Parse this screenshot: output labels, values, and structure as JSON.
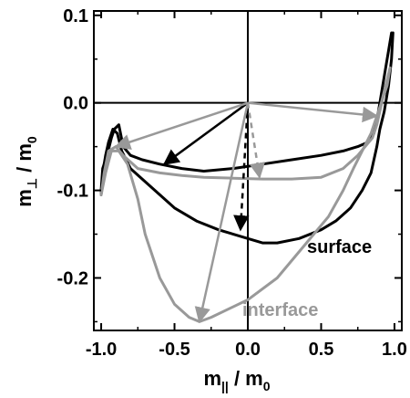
{
  "chart_data": {
    "type": "line",
    "xlabel": {
      "main": "m",
      "sub": "||",
      "den": " / m",
      "den_sub": "0"
    },
    "ylabel": {
      "main": "m",
      "sub": "⊥",
      "den": " / m",
      "den_sub": "0"
    },
    "xlim": [
      -1.05,
      1.05
    ],
    "ylim": [
      -0.26,
      0.105
    ],
    "xticks": [
      -1.0,
      -0.5,
      0.0,
      0.5,
      1.0
    ],
    "xtick_labels": [
      "-1.0",
      "-0.5",
      "0.0",
      "0.5",
      "1.0"
    ],
    "yticks": [
      -0.2,
      -0.1,
      0.0,
      0.1
    ],
    "ytick_labels": [
      "-0.2",
      "-0.1",
      "0.0",
      "0.1"
    ],
    "zero_lines": true,
    "series": [
      {
        "name": "surface",
        "color": "#000000",
        "segments": [
          [
            [
              -1.0,
              -0.1
            ],
            [
              -0.99,
              -0.075
            ],
            [
              -0.96,
              -0.06
            ],
            [
              -0.93,
              -0.04
            ],
            [
              -0.91,
              -0.03
            ],
            [
              -0.88,
              -0.025
            ],
            [
              -0.85,
              -0.05
            ],
            [
              -0.8,
              -0.06
            ],
            [
              -0.72,
              -0.065
            ],
            [
              -0.6,
              -0.07
            ],
            [
              -0.45,
              -0.075
            ],
            [
              -0.3,
              -0.078
            ],
            [
              -0.1,
              -0.075
            ],
            [
              0.1,
              -0.07
            ],
            [
              0.3,
              -0.065
            ],
            [
              0.5,
              -0.06
            ],
            [
              0.65,
              -0.055
            ],
            [
              0.75,
              -0.05
            ],
            [
              0.82,
              -0.045
            ],
            [
              0.86,
              -0.035
            ],
            [
              0.88,
              -0.02
            ],
            [
              0.9,
              0.0
            ],
            [
              0.92,
              0.02
            ],
            [
              0.94,
              0.04
            ],
            [
              0.96,
              0.06
            ],
            [
              0.98,
              0.08
            ]
          ],
          [
            [
              -1.0,
              -0.105
            ],
            [
              -0.99,
              -0.08
            ],
            [
              -0.97,
              -0.06
            ],
            [
              -0.95,
              -0.045
            ],
            [
              -0.92,
              -0.03
            ],
            [
              -0.89,
              -0.035
            ],
            [
              -0.86,
              -0.055
            ],
            [
              -0.8,
              -0.075
            ],
            [
              -0.7,
              -0.09
            ],
            [
              -0.6,
              -0.105
            ],
            [
              -0.5,
              -0.12
            ],
            [
              -0.35,
              -0.135
            ],
            [
              -0.2,
              -0.145
            ],
            [
              0.0,
              -0.155
            ],
            [
              0.1,
              -0.16
            ],
            [
              0.2,
              -0.16
            ],
            [
              0.35,
              -0.155
            ],
            [
              0.5,
              -0.145
            ],
            [
              0.6,
              -0.135
            ],
            [
              0.7,
              -0.12
            ],
            [
              0.78,
              -0.1
            ],
            [
              0.84,
              -0.08
            ],
            [
              0.88,
              -0.05
            ],
            [
              0.9,
              -0.03
            ],
            [
              0.93,
              -0.01
            ],
            [
              0.96,
              0.02
            ],
            [
              0.98,
              0.05
            ],
            [
              0.99,
              0.08
            ]
          ]
        ],
        "arrows": [
          {
            "from": [
              0.0,
              0.0
            ],
            "to": [
              -0.57,
              -0.07
            ],
            "style": "solid"
          },
          {
            "from": [
              0.0,
              0.0
            ],
            "to": [
              -0.05,
              -0.145
            ],
            "style": "dashed"
          }
        ]
      },
      {
        "name": "interface",
        "color": "#999999",
        "segments": [
          [
            [
              -1.0,
              -0.105
            ],
            [
              -0.98,
              -0.08
            ],
            [
              -0.95,
              -0.055
            ],
            [
              -0.9,
              -0.05
            ],
            [
              -0.85,
              -0.06
            ],
            [
              -0.75,
              -0.075
            ],
            [
              -0.6,
              -0.08
            ],
            [
              -0.45,
              -0.083
            ],
            [
              -0.3,
              -0.085
            ],
            [
              -0.1,
              -0.086
            ],
            [
              0.1,
              -0.087
            ],
            [
              0.3,
              -0.087
            ],
            [
              0.5,
              -0.085
            ],
            [
              0.65,
              -0.075
            ],
            [
              0.75,
              -0.06
            ],
            [
              0.85,
              -0.04
            ],
            [
              0.88,
              -0.025
            ],
            [
              0.9,
              -0.01
            ],
            [
              0.92,
              0.005
            ],
            [
              0.95,
              0.02
            ],
            [
              0.97,
              0.04
            ]
          ],
          [
            [
              -1.0,
              -0.105
            ],
            [
              -0.97,
              -0.08
            ],
            [
              -0.93,
              -0.055
            ],
            [
              -0.88,
              -0.055
            ],
            [
              -0.82,
              -0.07
            ],
            [
              -0.75,
              -0.11
            ],
            [
              -0.7,
              -0.15
            ],
            [
              -0.6,
              -0.2
            ],
            [
              -0.5,
              -0.23
            ],
            [
              -0.4,
              -0.245
            ],
            [
              -0.33,
              -0.25
            ],
            [
              -0.25,
              -0.245
            ],
            [
              0.0,
              -0.225
            ],
            [
              0.2,
              -0.2
            ],
            [
              0.4,
              -0.16
            ],
            [
              0.55,
              -0.13
            ],
            [
              0.65,
              -0.1
            ],
            [
              0.72,
              -0.075
            ],
            [
              0.78,
              -0.055
            ],
            [
              0.84,
              -0.035
            ],
            [
              0.88,
              -0.015
            ],
            [
              0.91,
              0.0
            ],
            [
              0.94,
              0.02
            ],
            [
              0.97,
              0.04
            ]
          ]
        ],
        "arrows": [
          {
            "from": [
              0.0,
              0.0
            ],
            "to": [
              -0.33,
              -0.25
            ],
            "style": "solid"
          },
          {
            "from": [
              0.0,
              0.0
            ],
            "to": [
              0.08,
              -0.085
            ],
            "style": "dashed"
          },
          {
            "from": [
              0.0,
              0.0
            ],
            "to": [
              -0.9,
              -0.05
            ],
            "style": "solid"
          },
          {
            "from": [
              0.0,
              0.0
            ],
            "to": [
              0.88,
              -0.015
            ],
            "style": "solid"
          }
        ]
      }
    ],
    "annotations": [
      {
        "text": "surface",
        "series": "surface"
      },
      {
        "text": "interface",
        "series": "interface"
      }
    ]
  }
}
